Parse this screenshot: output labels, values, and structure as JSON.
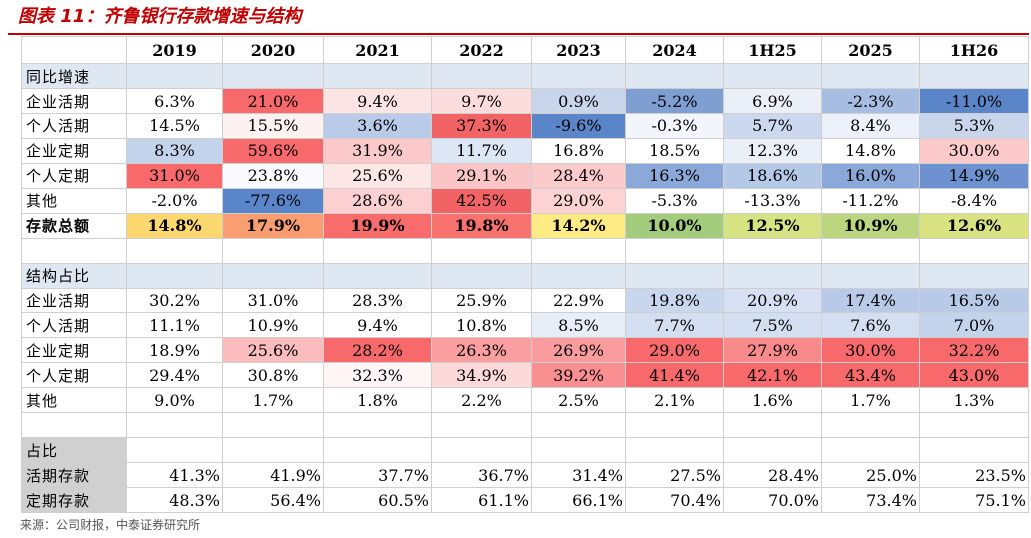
{
  "title": "图表 11：齐鲁银行存款增速与结构",
  "source": "来源：公司财报，中泰证券研究所",
  "colors": {
    "title_red": "#c00000",
    "section_band": "#dfe7f2",
    "share_label_bg": "#d0d0d0"
  },
  "chart_data": {
    "type": "table",
    "columns": [
      "2019",
      "2020",
      "2021",
      "2022",
      "2023",
      "2024",
      "1H25",
      "2025",
      "1H26"
    ],
    "rows": [
      {
        "kind": "section",
        "label": "同比增速"
      },
      {
        "kind": "data",
        "label": "企业活期",
        "values": [
          "6.3%",
          "21.0%",
          "9.4%",
          "9.7%",
          "0.9%",
          "-5.2%",
          "6.9%",
          "-2.3%",
          "-11.0%"
        ],
        "colors": [
          "#ffffff",
          "#f8696b",
          "#fce4e4",
          "#fcdcdc",
          "#c8d5eb",
          "#7f9fd3",
          "#eaeff8",
          "#a7bde2",
          "#5a86c9"
        ]
      },
      {
        "kind": "data",
        "label": "个人活期",
        "values": [
          "14.5%",
          "15.5%",
          "3.6%",
          "37.3%",
          "-9.6%",
          "-0.3%",
          "5.7%",
          "8.4%",
          "5.3%"
        ],
        "colors": [
          "#ffffff",
          "#fdf1f1",
          "#b9cbe8",
          "#f26365",
          "#5a86c9",
          "#f2f5fb",
          "#ccd8ee",
          "#ebf0f9",
          "#c8d5eb"
        ]
      },
      {
        "kind": "data",
        "label": "企业定期",
        "values": [
          "8.3%",
          "59.6%",
          "31.9%",
          "11.7%",
          "16.8%",
          "18.5%",
          "12.3%",
          "14.8%",
          "30.0%"
        ],
        "colors": [
          "#c4d3ec",
          "#f8696b",
          "#fbc9ca",
          "#dde6f4",
          "#ffffff",
          "#ffffff",
          "#eaeff8",
          "#ffffff",
          "#fbc9ca"
        ]
      },
      {
        "kind": "data",
        "label": "个人定期",
        "values": [
          "31.0%",
          "23.8%",
          "25.6%",
          "29.1%",
          "28.4%",
          "16.3%",
          "18.6%",
          "16.0%",
          "14.9%"
        ],
        "colors": [
          "#f8696b",
          "#f8fafd",
          "#fde6e6",
          "#fbc4c5",
          "#fbcbcc",
          "#8aa8d8",
          "#b4c8e8",
          "#8aa8d8",
          "#6e92cf"
        ]
      },
      {
        "kind": "data",
        "label": "其他",
        "values": [
          "-2.0%",
          "-77.6%",
          "28.6%",
          "42.5%",
          "29.0%",
          "-5.3%",
          "-13.3%",
          "-11.2%",
          "-8.4%"
        ],
        "colors": [
          "#ffffff",
          "#5a86c9",
          "#fcd0d0",
          "#f26365",
          "#fcd2d2",
          "#ffffff",
          "#ffffff",
          "#ffffff",
          "#ffffff"
        ]
      },
      {
        "kind": "total",
        "label": "存款总额",
        "values": [
          "14.8%",
          "17.9%",
          "19.9%",
          "19.8%",
          "14.2%",
          "10.0%",
          "12.5%",
          "10.9%",
          "12.6%"
        ],
        "colors": [
          "#fdd76f",
          "#fa9e72",
          "#f86c6b",
          "#f8736d",
          "#feeb84",
          "#a3cc7c",
          "#d6e383",
          "#bcd57f",
          "#d9e382"
        ]
      },
      {
        "kind": "blank",
        "label": ""
      },
      {
        "kind": "section",
        "label": "结构占比"
      },
      {
        "kind": "data",
        "label": "企业活期",
        "values": [
          "30.2%",
          "31.0%",
          "28.3%",
          "25.9%",
          "22.9%",
          "19.8%",
          "20.9%",
          "17.4%",
          "16.5%"
        ],
        "colors": [
          "#ffffff",
          "#ffffff",
          "#ffffff",
          "#ffffff",
          "#ffffff",
          "#c9d7ee",
          "#d6e0f2",
          "#b9cae9",
          "#b9cae9"
        ]
      },
      {
        "kind": "data",
        "label": "个人活期",
        "values": [
          "11.1%",
          "10.9%",
          "9.4%",
          "10.8%",
          "8.5%",
          "7.7%",
          "7.5%",
          "7.6%",
          "7.0%"
        ],
        "colors": [
          "#ffffff",
          "#ffffff",
          "#ffffff",
          "#ffffff",
          "#e8eef8",
          "#d3dff1",
          "#d3dff1",
          "#d3dff1",
          "#c4d3ec"
        ]
      },
      {
        "kind": "data",
        "label": "企业定期",
        "values": [
          "18.9%",
          "25.6%",
          "28.2%",
          "26.3%",
          "26.9%",
          "29.0%",
          "27.9%",
          "30.0%",
          "32.2%"
        ],
        "colors": [
          "#ffffff",
          "#fbbcbe",
          "#f8696b",
          "#fa9e9f",
          "#fa9c9d",
          "#f8696b",
          "#f98a8c",
          "#f8696b",
          "#f8696b"
        ]
      },
      {
        "kind": "data",
        "label": "个人定期",
        "values": [
          "29.4%",
          "30.8%",
          "32.3%",
          "34.9%",
          "39.2%",
          "41.4%",
          "42.1%",
          "43.4%",
          "43.0%"
        ],
        "colors": [
          "#ffffff",
          "#ffffff",
          "#fef6f6",
          "#fdd9da",
          "#fa8f91",
          "#f8696b",
          "#f8696b",
          "#f8696b",
          "#f8696b"
        ]
      },
      {
        "kind": "data",
        "label": "其他",
        "values": [
          "9.0%",
          "1.7%",
          "1.8%",
          "2.2%",
          "2.5%",
          "2.1%",
          "1.6%",
          "1.7%",
          "1.3%"
        ],
        "colors": [
          "#ffffff",
          "#ffffff",
          "#ffffff",
          "#ffffff",
          "#ffffff",
          "#ffffff",
          "#ffffff",
          "#ffffff",
          "#ffffff"
        ]
      },
      {
        "kind": "blank",
        "label": ""
      },
      {
        "kind": "share_label",
        "label": "占比"
      },
      {
        "kind": "share",
        "label": "活期存款",
        "values": [
          "41.3%",
          "41.9%",
          "37.7%",
          "36.7%",
          "31.4%",
          "27.5%",
          "28.4%",
          "25.0%",
          "23.5%"
        ]
      },
      {
        "kind": "share",
        "label": "定期存款",
        "values": [
          "48.3%",
          "56.4%",
          "60.5%",
          "61.1%",
          "66.1%",
          "70.4%",
          "70.0%",
          "73.4%",
          "75.1%"
        ]
      }
    ]
  }
}
